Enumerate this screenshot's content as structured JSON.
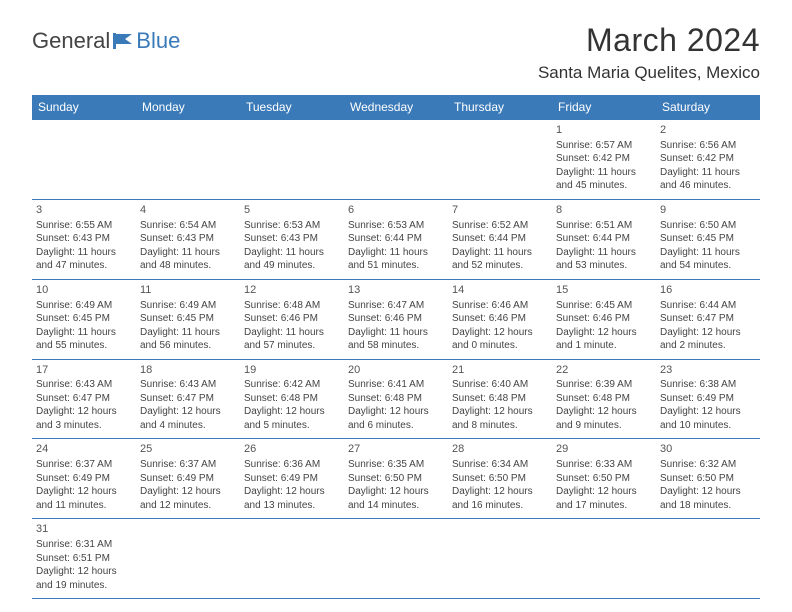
{
  "logo": {
    "text1": "General",
    "text2": "Blue"
  },
  "title": "March 2024",
  "location": "Santa Maria Quelites, Mexico",
  "colors": {
    "accent": "#3a7ab8",
    "text": "#333333",
    "bg": "#ffffff"
  },
  "weekdays": [
    "Sunday",
    "Monday",
    "Tuesday",
    "Wednesday",
    "Thursday",
    "Friday",
    "Saturday"
  ],
  "cells": [
    {
      "n": "",
      "sr": "",
      "ss": "",
      "d1": "",
      "d2": ""
    },
    {
      "n": "",
      "sr": "",
      "ss": "",
      "d1": "",
      "d2": ""
    },
    {
      "n": "",
      "sr": "",
      "ss": "",
      "d1": "",
      "d2": ""
    },
    {
      "n": "",
      "sr": "",
      "ss": "",
      "d1": "",
      "d2": ""
    },
    {
      "n": "",
      "sr": "",
      "ss": "",
      "d1": "",
      "d2": ""
    },
    {
      "n": "1",
      "sr": "Sunrise: 6:57 AM",
      "ss": "Sunset: 6:42 PM",
      "d1": "Daylight: 11 hours",
      "d2": "and 45 minutes."
    },
    {
      "n": "2",
      "sr": "Sunrise: 6:56 AM",
      "ss": "Sunset: 6:42 PM",
      "d1": "Daylight: 11 hours",
      "d2": "and 46 minutes."
    },
    {
      "n": "3",
      "sr": "Sunrise: 6:55 AM",
      "ss": "Sunset: 6:43 PM",
      "d1": "Daylight: 11 hours",
      "d2": "and 47 minutes."
    },
    {
      "n": "4",
      "sr": "Sunrise: 6:54 AM",
      "ss": "Sunset: 6:43 PM",
      "d1": "Daylight: 11 hours",
      "d2": "and 48 minutes."
    },
    {
      "n": "5",
      "sr": "Sunrise: 6:53 AM",
      "ss": "Sunset: 6:43 PM",
      "d1": "Daylight: 11 hours",
      "d2": "and 49 minutes."
    },
    {
      "n": "6",
      "sr": "Sunrise: 6:53 AM",
      "ss": "Sunset: 6:44 PM",
      "d1": "Daylight: 11 hours",
      "d2": "and 51 minutes."
    },
    {
      "n": "7",
      "sr": "Sunrise: 6:52 AM",
      "ss": "Sunset: 6:44 PM",
      "d1": "Daylight: 11 hours",
      "d2": "and 52 minutes."
    },
    {
      "n": "8",
      "sr": "Sunrise: 6:51 AM",
      "ss": "Sunset: 6:44 PM",
      "d1": "Daylight: 11 hours",
      "d2": "and 53 minutes."
    },
    {
      "n": "9",
      "sr": "Sunrise: 6:50 AM",
      "ss": "Sunset: 6:45 PM",
      "d1": "Daylight: 11 hours",
      "d2": "and 54 minutes."
    },
    {
      "n": "10",
      "sr": "Sunrise: 6:49 AM",
      "ss": "Sunset: 6:45 PM",
      "d1": "Daylight: 11 hours",
      "d2": "and 55 minutes."
    },
    {
      "n": "11",
      "sr": "Sunrise: 6:49 AM",
      "ss": "Sunset: 6:45 PM",
      "d1": "Daylight: 11 hours",
      "d2": "and 56 minutes."
    },
    {
      "n": "12",
      "sr": "Sunrise: 6:48 AM",
      "ss": "Sunset: 6:46 PM",
      "d1": "Daylight: 11 hours",
      "d2": "and 57 minutes."
    },
    {
      "n": "13",
      "sr": "Sunrise: 6:47 AM",
      "ss": "Sunset: 6:46 PM",
      "d1": "Daylight: 11 hours",
      "d2": "and 58 minutes."
    },
    {
      "n": "14",
      "sr": "Sunrise: 6:46 AM",
      "ss": "Sunset: 6:46 PM",
      "d1": "Daylight: 12 hours",
      "d2": "and 0 minutes."
    },
    {
      "n": "15",
      "sr": "Sunrise: 6:45 AM",
      "ss": "Sunset: 6:46 PM",
      "d1": "Daylight: 12 hours",
      "d2": "and 1 minute."
    },
    {
      "n": "16",
      "sr": "Sunrise: 6:44 AM",
      "ss": "Sunset: 6:47 PM",
      "d1": "Daylight: 12 hours",
      "d2": "and 2 minutes."
    },
    {
      "n": "17",
      "sr": "Sunrise: 6:43 AM",
      "ss": "Sunset: 6:47 PM",
      "d1": "Daylight: 12 hours",
      "d2": "and 3 minutes."
    },
    {
      "n": "18",
      "sr": "Sunrise: 6:43 AM",
      "ss": "Sunset: 6:47 PM",
      "d1": "Daylight: 12 hours",
      "d2": "and 4 minutes."
    },
    {
      "n": "19",
      "sr": "Sunrise: 6:42 AM",
      "ss": "Sunset: 6:48 PM",
      "d1": "Daylight: 12 hours",
      "d2": "and 5 minutes."
    },
    {
      "n": "20",
      "sr": "Sunrise: 6:41 AM",
      "ss": "Sunset: 6:48 PM",
      "d1": "Daylight: 12 hours",
      "d2": "and 6 minutes."
    },
    {
      "n": "21",
      "sr": "Sunrise: 6:40 AM",
      "ss": "Sunset: 6:48 PM",
      "d1": "Daylight: 12 hours",
      "d2": "and 8 minutes."
    },
    {
      "n": "22",
      "sr": "Sunrise: 6:39 AM",
      "ss": "Sunset: 6:48 PM",
      "d1": "Daylight: 12 hours",
      "d2": "and 9 minutes."
    },
    {
      "n": "23",
      "sr": "Sunrise: 6:38 AM",
      "ss": "Sunset: 6:49 PM",
      "d1": "Daylight: 12 hours",
      "d2": "and 10 minutes."
    },
    {
      "n": "24",
      "sr": "Sunrise: 6:37 AM",
      "ss": "Sunset: 6:49 PM",
      "d1": "Daylight: 12 hours",
      "d2": "and 11 minutes."
    },
    {
      "n": "25",
      "sr": "Sunrise: 6:37 AM",
      "ss": "Sunset: 6:49 PM",
      "d1": "Daylight: 12 hours",
      "d2": "and 12 minutes."
    },
    {
      "n": "26",
      "sr": "Sunrise: 6:36 AM",
      "ss": "Sunset: 6:49 PM",
      "d1": "Daylight: 12 hours",
      "d2": "and 13 minutes."
    },
    {
      "n": "27",
      "sr": "Sunrise: 6:35 AM",
      "ss": "Sunset: 6:50 PM",
      "d1": "Daylight: 12 hours",
      "d2": "and 14 minutes."
    },
    {
      "n": "28",
      "sr": "Sunrise: 6:34 AM",
      "ss": "Sunset: 6:50 PM",
      "d1": "Daylight: 12 hours",
      "d2": "and 16 minutes."
    },
    {
      "n": "29",
      "sr": "Sunrise: 6:33 AM",
      "ss": "Sunset: 6:50 PM",
      "d1": "Daylight: 12 hours",
      "d2": "and 17 minutes."
    },
    {
      "n": "30",
      "sr": "Sunrise: 6:32 AM",
      "ss": "Sunset: 6:50 PM",
      "d1": "Daylight: 12 hours",
      "d2": "and 18 minutes."
    },
    {
      "n": "31",
      "sr": "Sunrise: 6:31 AM",
      "ss": "Sunset: 6:51 PM",
      "d1": "Daylight: 12 hours",
      "d2": "and 19 minutes."
    },
    {
      "n": "",
      "sr": "",
      "ss": "",
      "d1": "",
      "d2": ""
    },
    {
      "n": "",
      "sr": "",
      "ss": "",
      "d1": "",
      "d2": ""
    },
    {
      "n": "",
      "sr": "",
      "ss": "",
      "d1": "",
      "d2": ""
    },
    {
      "n": "",
      "sr": "",
      "ss": "",
      "d1": "",
      "d2": ""
    },
    {
      "n": "",
      "sr": "",
      "ss": "",
      "d1": "",
      "d2": ""
    },
    {
      "n": "",
      "sr": "",
      "ss": "",
      "d1": "",
      "d2": ""
    }
  ]
}
